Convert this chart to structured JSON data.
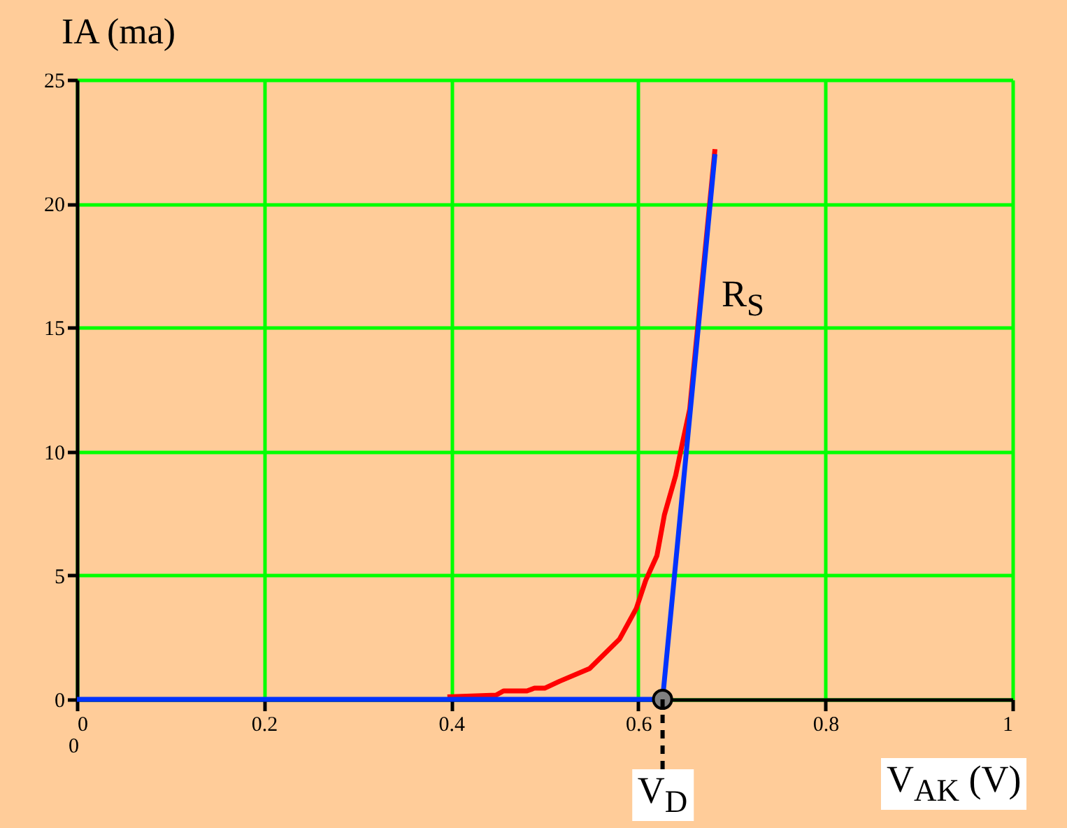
{
  "chart_data": {
    "type": "line",
    "ylabel": "IA (ma)",
    "xlabel": "V$_{AK}$ (V)",
    "xlim": [
      0,
      1
    ],
    "xticks": [
      0,
      0.2,
      0.4,
      0.6,
      0.8,
      1
    ],
    "ylim": [
      0,
      25
    ],
    "yticks": [
      0,
      5,
      10,
      15,
      20,
      25
    ],
    "grid": true,
    "series": [
      {
        "color": "#ff0000",
        "x": [
          0.396,
          0.448,
          0.456,
          0.481,
          0.489,
          0.5,
          0.516,
          0.548,
          0.58,
          0.598,
          0.608,
          0.62,
          0.628,
          0.64,
          0.647,
          0.655,
          0.682
        ],
        "values": [
          0.1,
          0.17,
          0.34,
          0.34,
          0.45,
          0.45,
          0.73,
          1.24,
          2.43,
          3.67,
          4.8,
          5.8,
          7.45,
          9.03,
          10.3,
          11.7,
          22.2
        ]
      },
      {
        "color": "#0033ff",
        "x": [
          0,
          0.626,
          0.682
        ],
        "values": [
          0,
          0,
          22
        ]
      },
      {
        "type": "scatter",
        "color": "#808080",
        "marker": "circle",
        "x": [
          0.626
        ],
        "values": [
          0
        ]
      }
    ],
    "ref_lines": [
      {
        "axis": "x",
        "value": 0.626,
        "label": "V$_{D}$",
        "line_style": "dashed",
        "color": "#000000"
      }
    ],
    "annotations": [
      "R$_{S}$",
      "0"
    ]
  }
}
